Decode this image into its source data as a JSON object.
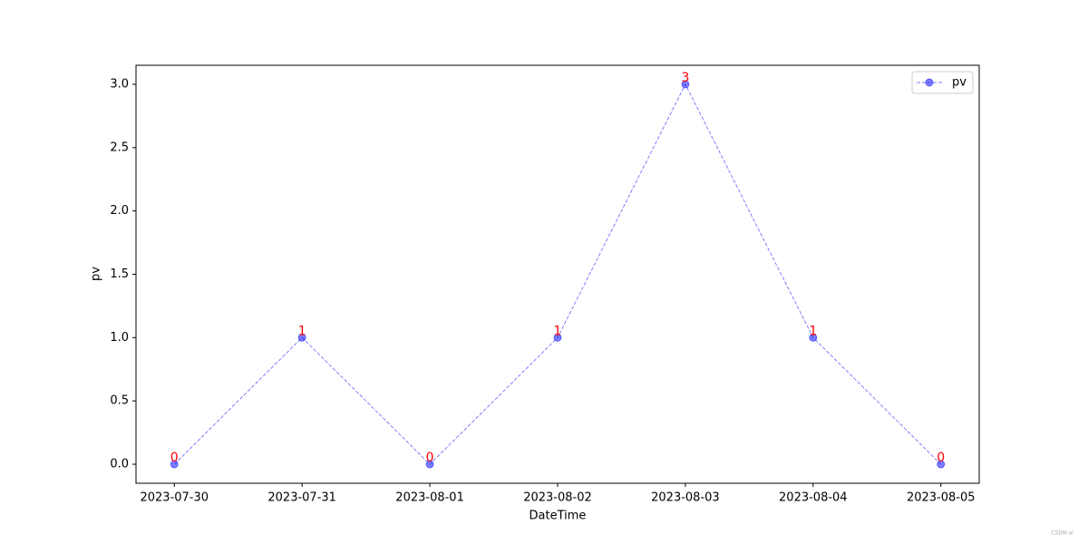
{
  "chart_data": {
    "type": "line",
    "x_label": "DateTime",
    "y_label": "pv",
    "categories": [
      "2023-07-30",
      "2023-07-31",
      "2023-08-01",
      "2023-08-02",
      "2023-08-03",
      "2023-08-04",
      "2023-08-05"
    ],
    "series": [
      {
        "name": "pv",
        "color": "#0000ff",
        "values": [
          0,
          1,
          0,
          1,
          3,
          1,
          0
        ]
      }
    ],
    "value_label_color": "#ff0000",
    "ylim": [
      -0.15,
      3.15
    ],
    "yticks": [
      {
        "value": 0,
        "label": "0.0"
      },
      0.5,
      {
        "value": 1,
        "label": "1.0"
      },
      1.5,
      {
        "value": 2,
        "label": "2.0"
      },
      2.5,
      {
        "value": 3,
        "label": "3.0"
      }
    ],
    "legend": "upper right",
    "grid": false,
    "line_style": "dashed",
    "watermark": "CSDN-ai"
  }
}
